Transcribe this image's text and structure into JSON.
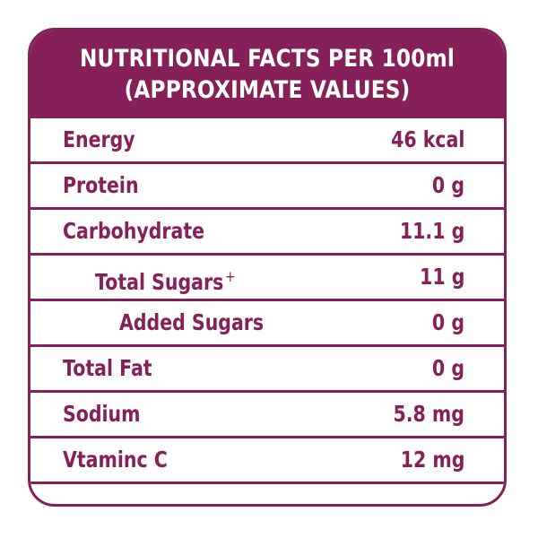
{
  "colors": {
    "brand": "#852058",
    "background": "#ffffff"
  },
  "header": {
    "line1": "NUTRITIONAL FACTS PER 100ml",
    "line2": "(APPROXIMATE VALUES)"
  },
  "rows": [
    {
      "label": "Energy",
      "value": "46 kcal",
      "indent": 0
    },
    {
      "label": "Protein",
      "value": "0 g",
      "indent": 0
    },
    {
      "label": "Carbohydrate",
      "value": "11.1 g",
      "indent": 0
    },
    {
      "label": "Total Sugars",
      "superscript": "+",
      "value": "11 g",
      "indent": 1
    },
    {
      "label": "Added Sugars",
      "value": "0 g",
      "indent": 2
    },
    {
      "label": "Total Fat",
      "value": "0 g",
      "indent": 0
    },
    {
      "label": "Sodium",
      "value": "5.8 mg",
      "indent": 0
    },
    {
      "label": "Vtaminc C",
      "value": "12 mg",
      "indent": 0
    }
  ]
}
